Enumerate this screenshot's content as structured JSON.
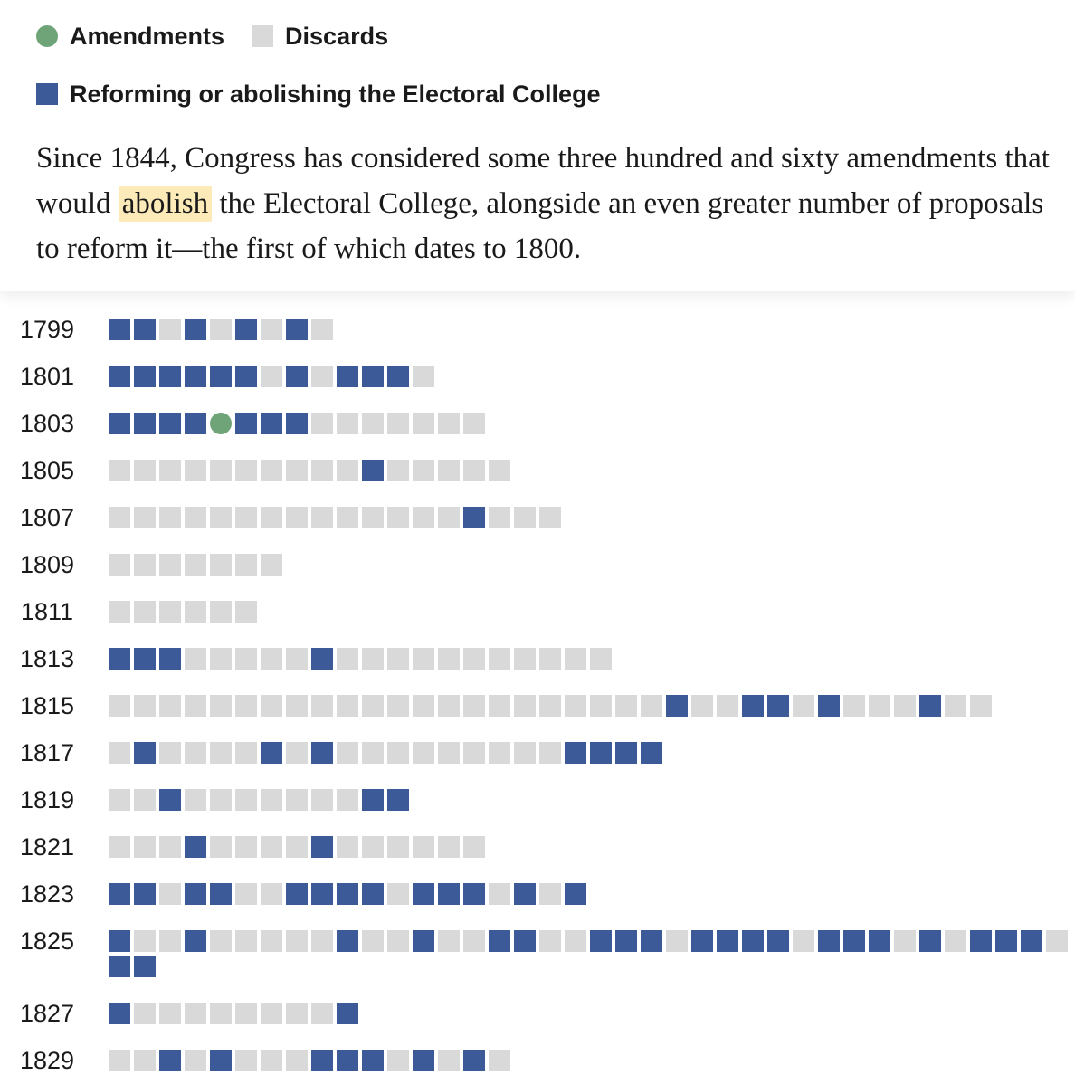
{
  "legend": {
    "amendments_label": "Amendments",
    "discards_label": "Discards",
    "reform_label": "Reforming or abolishing the Electoral College"
  },
  "intro": {
    "before": "Since 1844, Congress has considered some three hundred and sixty amendments that would ",
    "highlight": "abolish",
    "after": " the Electoral College, alongside an even greater number of proposals to reform it—the first of which dates to 1800."
  },
  "colors": {
    "amendment": "#6fa378",
    "discard": "#d9d9d9",
    "reform": "#3d5a98",
    "highlight": "#fcebb8"
  },
  "chart_data": {
    "type": "unit-grid",
    "legend": [
      "Amendments",
      "Discards",
      "Reforming or abolishing the Electoral College"
    ],
    "code_key": {
      "R": "Reforming or abolishing the Electoral College",
      "D": "Discards",
      "A": "Amendments"
    },
    "rows": [
      {
        "year": "1799",
        "items": "RRDRDRDRD"
      },
      {
        "year": "1801",
        "items": "RRRRRRDRDRRRD"
      },
      {
        "year": "1803",
        "items": "RRRRARRRDDDDDDD"
      },
      {
        "year": "1805",
        "items": "DDDDDDDDDDRDDDDD"
      },
      {
        "year": "1807",
        "items": "DDDDDDDDDDDDDDRDDD"
      },
      {
        "year": "1809",
        "items": "DDDDDDD"
      },
      {
        "year": "1811",
        "items": "DDDDDD"
      },
      {
        "year": "1813",
        "items": "RRRDDDDDRDDDDDDDDDDD"
      },
      {
        "year": "1815",
        "items": "DDDDDDDDDDDDDDDDDDDDDDRDDRRDRDDDRDD"
      },
      {
        "year": "1817",
        "items": "DRDDDDRDRDDDDDDDDDRRRR"
      },
      {
        "year": "1819",
        "items": "DDRDDDDDDDRR"
      },
      {
        "year": "1821",
        "items": "DDDRDDDDRDDDDDD"
      },
      {
        "year": "1823",
        "items": "RRDRRDDRRRRDRRRDRDR"
      },
      {
        "year": "1825",
        "items": "RDDRDDDDDRDDRDDRRDDRRRDRRRRDRRRDRDRRRDRR"
      },
      {
        "year": "1827",
        "items": "RDDDDDDDDR"
      },
      {
        "year": "1829",
        "items": "DDRDRDDDRRRDRDRD"
      }
    ]
  }
}
